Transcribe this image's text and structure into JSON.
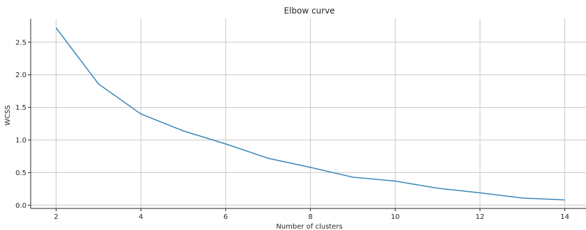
{
  "chart_data": {
    "type": "line",
    "title": "Elbow curve",
    "xlabel": "Number of clusters",
    "ylabel": "WCSS",
    "x": [
      2,
      3,
      4,
      5,
      6,
      7,
      8,
      9,
      10,
      11,
      12,
      13,
      14
    ],
    "series": [
      {
        "values": [
          2.72,
          1.86,
          1.4,
          1.14,
          0.94,
          0.72,
          0.58,
          0.43,
          0.37,
          0.26,
          0.19,
          0.11,
          0.08
        ]
      }
    ],
    "xlim": [
      1.4,
      14.5
    ],
    "ylim": [
      -0.05,
      2.86
    ],
    "xticks": [
      2,
      4,
      6,
      8,
      10,
      12,
      14
    ],
    "xtick_labels": [
      "2",
      "4",
      "6",
      "8",
      "10",
      "12",
      "14"
    ],
    "yticks": [
      0.0,
      0.5,
      1.0,
      1.5,
      2.0,
      2.5
    ],
    "ytick_labels": [
      "0.0",
      "0.5",
      "1.0",
      "1.5",
      "2.0",
      "2.5"
    ],
    "grid": true,
    "line_color": "#3a87b8",
    "grid_color": "#c8c8c8",
    "axis_color": "#262626"
  }
}
